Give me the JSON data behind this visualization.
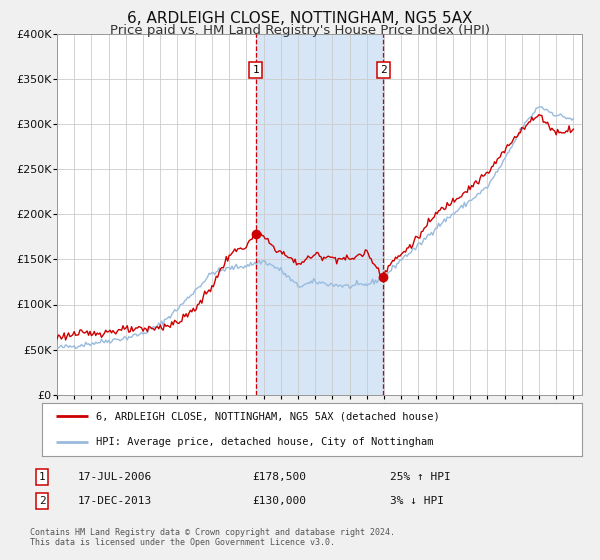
{
  "title": "6, ARDLEIGH CLOSE, NOTTINGHAM, NG5 5AX",
  "subtitle": "Price paid vs. HM Land Registry's House Price Index (HPI)",
  "title_fontsize": 11,
  "subtitle_fontsize": 9.5,
  "legend_label_red": "6, ARDLEIGH CLOSE, NOTTINGHAM, NG5 5AX (detached house)",
  "legend_label_blue": "HPI: Average price, detached house, City of Nottingham",
  "annotation1_label": "1",
  "annotation1_date": "17-JUL-2006",
  "annotation1_price": "£178,500",
  "annotation1_pct": "25% ↑ HPI",
  "annotation2_label": "2",
  "annotation2_date": "17-DEC-2013",
  "annotation2_price": "£130,000",
  "annotation2_pct": "3% ↓ HPI",
  "footer": "Contains HM Land Registry data © Crown copyright and database right 2024.\nThis data is licensed under the Open Government Licence v3.0.",
  "ylim": [
    0,
    400000
  ],
  "yticks": [
    0,
    50000,
    100000,
    150000,
    200000,
    250000,
    300000,
    350000,
    400000
  ],
  "xlim_start": 1995.0,
  "xlim_end": 2025.5,
  "vline1_x": 2006.54,
  "vline2_x": 2013.96,
  "marker1_red_x": 2006.54,
  "marker1_red_y": 178500,
  "marker2_red_x": 2013.96,
  "marker2_red_y": 130000,
  "shade_color": "#cce0f5",
  "red_color": "#cc0000",
  "blue_color": "#99bbdd",
  "background_color": "#f0f0f0",
  "plot_bg_color": "#ffffff",
  "grid_color": "#cccccc",
  "hpi_anchors": {
    "1995.0": 52000,
    "1996.0": 54000,
    "1997.0": 57000,
    "1998.0": 60000,
    "1999.0": 63000,
    "2000.0": 68000,
    "2001.0": 78000,
    "2002.0": 95000,
    "2003.0": 115000,
    "2004.0": 135000,
    "2005.0": 140000,
    "2006.0": 143000,
    "2007.0": 148000,
    "2008.0": 138000,
    "2009.0": 120000,
    "2010.0": 125000,
    "2011.0": 122000,
    "2012.0": 120000,
    "2013.0": 122000,
    "2014.0": 130000,
    "2015.0": 150000,
    "2016.0": 165000,
    "2017.0": 185000,
    "2018.0": 200000,
    "2019.0": 215000,
    "2020.0": 230000,
    "2021.0": 260000,
    "2022.0": 295000,
    "2023.0": 320000,
    "2024.0": 310000,
    "2025.0": 305000
  },
  "red_anchors": {
    "1995.0": 64000,
    "1996.0": 67000,
    "1997.0": 68000,
    "1998.0": 70000,
    "1999.0": 72000,
    "2000.0": 72000,
    "2001.0": 75000,
    "2002.0": 80000,
    "2003.0": 95000,
    "2004.0": 120000,
    "2005.0": 155000,
    "2006.0": 165000,
    "2006.54": 178500,
    "2007.0": 175000,
    "2007.5": 165000,
    "2008.0": 158000,
    "2009.0": 145000,
    "2010.0": 155000,
    "2011.0": 152000,
    "2012.0": 150000,
    "2013.0": 158000,
    "2013.96": 130000,
    "2014.0": 135000,
    "2014.5": 148000,
    "2015.0": 155000,
    "2016.0": 175000,
    "2017.0": 200000,
    "2018.0": 215000,
    "2019.0": 230000,
    "2020.0": 245000,
    "2021.0": 270000,
    "2022.0": 295000,
    "2023.0": 310000,
    "2024.0": 290000,
    "2025.0": 295000
  }
}
